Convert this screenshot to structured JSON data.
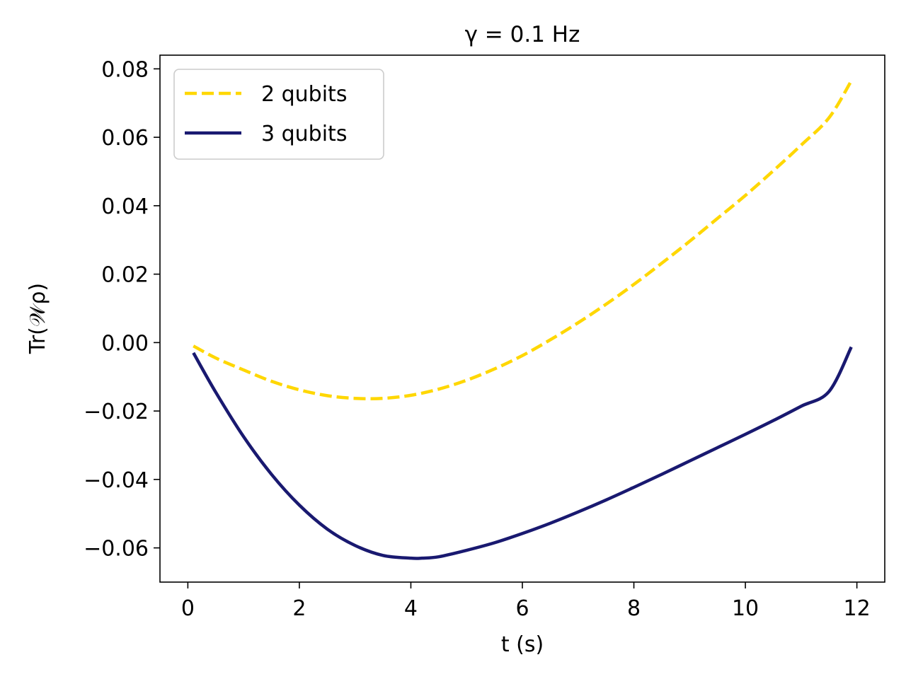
{
  "chart_data": {
    "type": "line",
    "title": "γ = 0.1  Hz",
    "xlabel": "t (s)",
    "ylabel": "Tr(𝒲ρ)",
    "xlim": [
      -0.5,
      12.5
    ],
    "ylim": [
      -0.07,
      0.084
    ],
    "x_ticks": [
      0,
      2,
      4,
      6,
      8,
      10,
      12
    ],
    "y_ticks": [
      -0.06,
      -0.04,
      -0.02,
      0.0,
      0.02,
      0.04,
      0.06,
      0.08
    ],
    "x_tick_labels": [
      "0",
      "2",
      "4",
      "6",
      "8",
      "10",
      "12"
    ],
    "y_tick_labels": [
      "−0.06",
      "−0.04",
      "−0.02",
      "0.00",
      "0.02",
      "0.04",
      "0.06",
      "0.08"
    ],
    "grid": false,
    "legend_position": "upper-left",
    "series": [
      {
        "name": "2 qubits",
        "color": "#FFD700",
        "dash": "dashed",
        "x": [
          0.1,
          0.5,
          1.0,
          1.5,
          2.0,
          2.5,
          3.0,
          3.5,
          4.0,
          4.5,
          5.0,
          5.5,
          6.0,
          6.5,
          7.0,
          7.5,
          8.0,
          8.5,
          9.0,
          9.5,
          10.0,
          10.5,
          11.0,
          11.5,
          11.9
        ],
        "y": [
          -0.001,
          -0.0045,
          -0.008,
          -0.0113,
          -0.0138,
          -0.0155,
          -0.0163,
          -0.0163,
          -0.0154,
          -0.0136,
          -0.011,
          -0.0077,
          -0.0038,
          0.0008,
          0.0058,
          0.0112,
          0.017,
          0.0232,
          0.0296,
          0.0363,
          0.043,
          0.0502,
          0.0577,
          0.0657,
          0.0765
        ]
      },
      {
        "name": "3 qubits",
        "color": "#191970",
        "dash": "solid",
        "x": [
          0.1,
          0.5,
          1.0,
          1.5,
          2.0,
          2.5,
          3.0,
          3.5,
          4.0,
          4.2,
          4.5,
          5.0,
          5.5,
          6.0,
          6.5,
          7.0,
          7.5,
          8.0,
          8.5,
          9.0,
          9.5,
          10.0,
          10.5,
          11.0,
          11.5,
          11.9
        ],
        "y": [
          -0.003,
          -0.0145,
          -0.0275,
          -0.0385,
          -0.0475,
          -0.0545,
          -0.0593,
          -0.0622,
          -0.063,
          -0.063,
          -0.0626,
          -0.0607,
          -0.0585,
          -0.0558,
          -0.0528,
          -0.0495,
          -0.046,
          -0.0423,
          -0.0385,
          -0.0346,
          -0.0307,
          -0.0268,
          -0.0228,
          -0.0186,
          -0.0143,
          -0.0013
        ]
      }
    ]
  }
}
